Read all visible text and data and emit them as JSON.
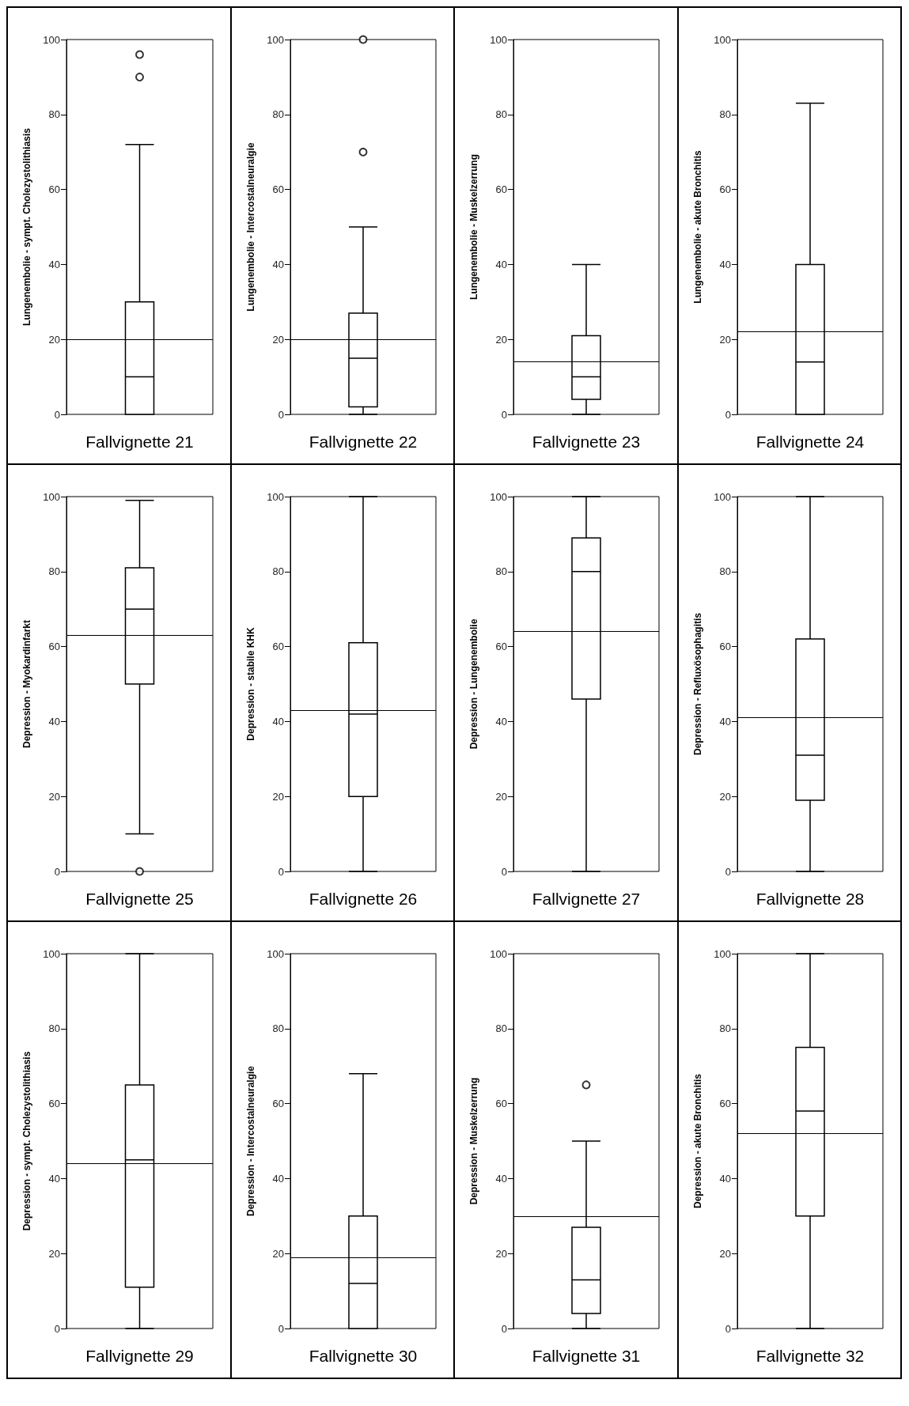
{
  "chart_data": [
    {
      "type": "box",
      "xlabel": "Fallvignette 21",
      "ylabel": "Lungenembolie - sympt. Cholezystolithiasis",
      "categories": [
        null
      ],
      "boxes": [
        {
          "low": 0,
          "q1": 0,
          "median": 10,
          "q3": 30,
          "high": 72,
          "outliers": [
            90,
            96
          ]
        }
      ],
      "ylim": [
        0,
        100
      ],
      "yticks": [
        0,
        20,
        40,
        60,
        80,
        100
      ],
      "ref_lines": [
        {
          "axis": "y",
          "value": 20
        }
      ],
      "grid": false
    },
    {
      "type": "box",
      "xlabel": "Fallvignette 22",
      "ylabel": "Lungenembolie - Intercostalneuralgie",
      "categories": [
        null
      ],
      "boxes": [
        {
          "low": 0,
          "q1": 2,
          "median": 15,
          "q3": 27,
          "high": 50,
          "outliers": [
            70,
            100
          ]
        }
      ],
      "ylim": [
        0,
        100
      ],
      "yticks": [
        0,
        20,
        40,
        60,
        80,
        100
      ],
      "ref_lines": [
        {
          "axis": "y",
          "value": 20
        }
      ],
      "grid": false
    },
    {
      "type": "box",
      "xlabel": "Fallvignette 23",
      "ylabel": "Lungenembolie - Muskelzerrung",
      "categories": [
        null
      ],
      "boxes": [
        {
          "low": 0,
          "q1": 4,
          "median": 10,
          "q3": 21,
          "high": 40
        }
      ],
      "ylim": [
        0,
        100
      ],
      "yticks": [
        0,
        20,
        40,
        60,
        80,
        100
      ],
      "ref_lines": [
        {
          "axis": "y",
          "value": 14
        }
      ],
      "grid": false
    },
    {
      "type": "box",
      "xlabel": "Fallvignette 24",
      "ylabel": "Lungenembolie - akute Bronchitis",
      "categories": [
        null
      ],
      "boxes": [
        {
          "low": 0,
          "q1": 0,
          "median": 14,
          "q3": 40,
          "high": 83
        }
      ],
      "ylim": [
        0,
        100
      ],
      "yticks": [
        0,
        20,
        40,
        60,
        80,
        100
      ],
      "ref_lines": [
        {
          "axis": "y",
          "value": 22
        }
      ],
      "grid": false
    },
    {
      "type": "box",
      "xlabel": "Fallvignette 25",
      "ylabel": "Depression - Myokardinfarkt",
      "categories": [
        null
      ],
      "boxes": [
        {
          "low": 10,
          "q1": 50,
          "median": 70,
          "q3": 81,
          "high": 99,
          "outliers": [
            0
          ]
        }
      ],
      "ylim": [
        0,
        100
      ],
      "yticks": [
        0,
        20,
        40,
        60,
        80,
        100
      ],
      "ref_lines": [
        {
          "axis": "y",
          "value": 63
        }
      ],
      "grid": false
    },
    {
      "type": "box",
      "xlabel": "Fallvignette 26",
      "ylabel": "Depression - stabile KHK",
      "categories": [
        null
      ],
      "boxes": [
        {
          "low": 0,
          "q1": 20,
          "median": 42,
          "q3": 61,
          "high": 100
        }
      ],
      "ylim": [
        0,
        100
      ],
      "yticks": [
        0,
        20,
        40,
        60,
        80,
        100
      ],
      "ref_lines": [
        {
          "axis": "y",
          "value": 43
        }
      ],
      "grid": false
    },
    {
      "type": "box",
      "xlabel": "Fallvignette 27",
      "ylabel": "Depression - Lungenembolie",
      "categories": [
        null
      ],
      "boxes": [
        {
          "low": 0,
          "q1": 46,
          "median": 80,
          "q3": 89,
          "high": 100
        }
      ],
      "ylim": [
        0,
        100
      ],
      "yticks": [
        0,
        20,
        40,
        60,
        80,
        100
      ],
      "ref_lines": [
        {
          "axis": "y",
          "value": 64
        }
      ],
      "grid": false
    },
    {
      "type": "box",
      "xlabel": "Fallvignette 28",
      "ylabel": "Depression - Refluxösophagitis",
      "categories": [
        null
      ],
      "boxes": [
        {
          "low": 0,
          "q1": 19,
          "median": 31,
          "q3": 62,
          "high": 100
        }
      ],
      "ylim": [
        0,
        100
      ],
      "yticks": [
        0,
        20,
        40,
        60,
        80,
        100
      ],
      "ref_lines": [
        {
          "axis": "y",
          "value": 41
        }
      ],
      "grid": false
    },
    {
      "type": "box",
      "xlabel": "Fallvignette 29",
      "ylabel": "Depression - sympt. Cholezystolithiasis",
      "categories": [
        null
      ],
      "boxes": [
        {
          "low": 0,
          "q1": 11,
          "median": 45,
          "q3": 65,
          "high": 100
        }
      ],
      "ylim": [
        0,
        100
      ],
      "yticks": [
        0,
        20,
        40,
        60,
        80,
        100
      ],
      "ref_lines": [
        {
          "axis": "y",
          "value": 44
        }
      ],
      "grid": false
    },
    {
      "type": "box",
      "xlabel": "Fallvignette 30",
      "ylabel": "Depression - Intercostalneuralgie",
      "categories": [
        null
      ],
      "boxes": [
        {
          "low": 0,
          "q1": 0,
          "median": 12,
          "q3": 30,
          "high": 68
        }
      ],
      "ylim": [
        0,
        100
      ],
      "yticks": [
        0,
        20,
        40,
        60,
        80,
        100
      ],
      "ref_lines": [
        {
          "axis": "y",
          "value": 19
        }
      ],
      "grid": false
    },
    {
      "type": "box",
      "xlabel": "Fallvignette 31",
      "ylabel": "Depression - Muskelzerrung",
      "categories": [
        null
      ],
      "boxes": [
        {
          "low": 0,
          "q1": 4,
          "median": 13,
          "q3": 27,
          "high": 50,
          "outliers": [
            65
          ]
        }
      ],
      "ylim": [
        0,
        100
      ],
      "yticks": [
        0,
        20,
        40,
        60,
        80,
        100
      ],
      "ref_lines": [
        {
          "axis": "y",
          "value": 30
        }
      ],
      "grid": false
    },
    {
      "type": "box",
      "xlabel": "Fallvignette 32",
      "ylabel": "Depression - akute Bronchitis",
      "categories": [
        null
      ],
      "boxes": [
        {
          "low": 0,
          "q1": 30,
          "median": 58,
          "q3": 75,
          "high": 100
        }
      ],
      "ylim": [
        0,
        100
      ],
      "yticks": [
        0,
        20,
        40,
        60,
        80,
        100
      ],
      "ref_lines": [
        {
          "axis": "y",
          "value": 52
        }
      ],
      "grid": false
    }
  ]
}
